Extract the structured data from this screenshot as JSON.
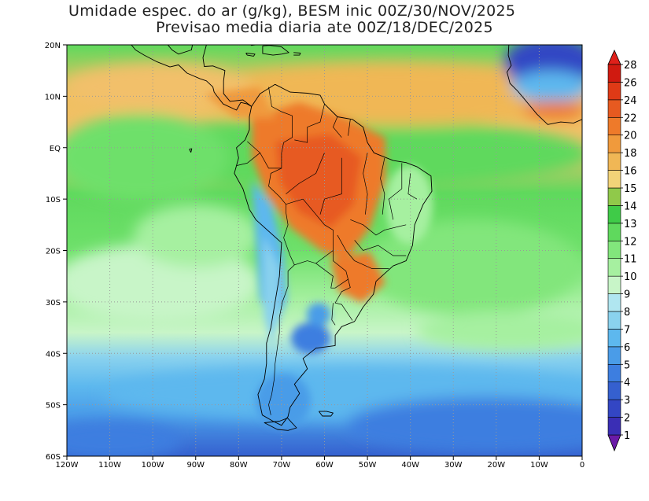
{
  "title": {
    "line1": "Umidade espec. do ar (g/kg), BESM inic 00Z/30/NOV/2025",
    "line2": "Previsao media diaria ate 00Z/18/DEC/2025"
  },
  "axes": {
    "x_ticks": [
      "120W",
      "110W",
      "100W",
      "90W",
      "80W",
      "70W",
      "60W",
      "50W",
      "40W",
      "30W",
      "20W",
      "10W",
      "0"
    ],
    "y_ticks": [
      "20N",
      "10N",
      "EQ",
      "10S",
      "20S",
      "30S",
      "40S",
      "50S",
      "60S"
    ],
    "lon_range": [
      -120,
      0
    ],
    "lat_range": [
      -60,
      20
    ],
    "grid": "dotted"
  },
  "colorbar": {
    "levels": [
      "1",
      "2",
      "3",
      "4",
      "5",
      "6",
      "7",
      "8",
      "9",
      "10",
      "11",
      "12",
      "13",
      "14",
      "15",
      "16",
      "18",
      "20",
      "22",
      "24",
      "26",
      "28"
    ],
    "colors": [
      "#3b1aa0",
      "#3a2eb5",
      "#3346c4",
      "#3560cf",
      "#3d7ee0",
      "#4a9ce8",
      "#5db8ee",
      "#8ad2ee",
      "#b0e6f0",
      "#c8f5c8",
      "#a6f0a0",
      "#82e67c",
      "#5fd95d",
      "#3fcb48",
      "#90c94a",
      "#f2d378",
      "#f0b755",
      "#f09a3c",
      "#ee7a2a",
      "#e75a20",
      "#df3a16",
      "#d01a10"
    ],
    "under_color": "#6a1aa8",
    "over_color": "#e0201a"
  },
  "colors": {
    "coastline": "#000000",
    "grid": "#999999"
  }
}
